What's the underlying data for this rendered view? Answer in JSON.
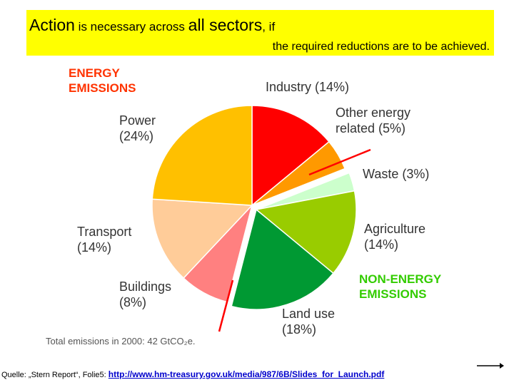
{
  "banner": {
    "w1": "Action",
    "w2": " is necessary across ",
    "w3": "all sectors",
    "w4": ", if",
    "line2": "the required reductions are to be achieved."
  },
  "chart_data": {
    "type": "pie",
    "title": "",
    "groups": [
      "ENERGY\nEMISSIONS",
      "NON-ENERGY\nEMISSIONS"
    ],
    "slices": [
      {
        "name": "Industry",
        "value": 14,
        "label": "(14%)",
        "color": "#ff0000",
        "group": "energy"
      },
      {
        "name": "Other energy\nrelated",
        "value": 5,
        "label": "(5%)",
        "color": "#ff9900",
        "group": "energy"
      },
      {
        "name": "Waste",
        "value": 3,
        "label": "(3%)",
        "color": "#ccffcc",
        "group": "non-energy"
      },
      {
        "name": "Agriculture",
        "value": 14,
        "label": "(14%)",
        "color": "#99cc00",
        "group": "non-energy"
      },
      {
        "name": "Land use",
        "value": 18,
        "label": "(18%)",
        "color": "#009933",
        "group": "non-energy"
      },
      {
        "name": "Buildings",
        "value": 8,
        "label": "(8%)",
        "color": "#ff8080",
        "group": "energy"
      },
      {
        "name": "Transport",
        "value": 14,
        "label": "(14%)",
        "color": "#ffcc99",
        "group": "energy"
      },
      {
        "name": "Power",
        "value": 24,
        "label": "(24%)",
        "color": "#ffc000",
        "group": "energy"
      }
    ],
    "group_colors": {
      "energy": "#ff3300",
      "non-energy": "#33cc00"
    },
    "total_note": "Total emissions in 2000: 42 GtCO₂e."
  },
  "footer": {
    "source": "Quelle: „Stern Report“, Folie5: ",
    "link": "http://www.hm-treasury.gov.uk/media/987/6B/Slides_for_Launch.pdf"
  }
}
